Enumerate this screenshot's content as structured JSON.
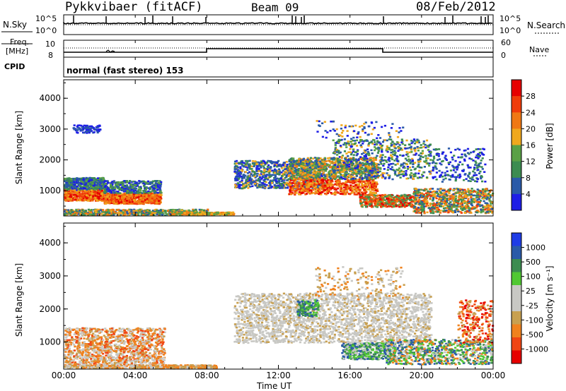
{
  "header": {
    "station": "Pykkvibaer (fitACF)",
    "beam": "Beam 09",
    "date": "08/Feb/2012"
  },
  "strip": {
    "nsky_label": "N.Sky",
    "freq_label_1": "Freq.",
    "freq_label_2": "[MHz]",
    "cpid_label": "CPID",
    "nsearch_label": "N.Search",
    "nave_label": "Nave",
    "nsky_ticks": [
      "10^5",
      "10^0"
    ],
    "nsearch_ticks": [
      "10^5",
      "10^0"
    ],
    "freq_ticks": [
      "10",
      "8"
    ],
    "nave_ticks": [
      "60",
      "0"
    ],
    "cpid_text": "normal (fast stereo) 153"
  },
  "colors": {
    "power_scale": [
      "#1e1ee6",
      "#2a5aa8",
      "#3c8c50",
      "#5aa046",
      "#f0a81e",
      "#f07814",
      "#f03c0a",
      "#e60000"
    ],
    "velocity_scale": [
      "#e60000",
      "#f04614",
      "#f0821e",
      "#c8a050",
      "#c8c8c4",
      "#c8c8c4",
      "#50c832",
      "#3c8c50",
      "#2a5aa8",
      "#1e3ce6"
    ]
  },
  "chart_data": [
    {
      "type": "heatmap",
      "name": "power",
      "ylabel": "Slant Range [km]",
      "ylim": [
        180,
        4600
      ],
      "yticks": [
        "4000",
        "3000",
        "2000",
        "1000"
      ],
      "colorbar_label": "Power [dB]",
      "colorbar_ticks": [
        "28",
        "24",
        "20",
        "16",
        "12",
        "8",
        "4"
      ],
      "xticks": [
        "00:00",
        "04:00",
        "08:00",
        "12:00",
        "16:00",
        "20:00",
        "00:00"
      ],
      "xlim_hours": [
        0,
        24
      ]
    },
    {
      "type": "heatmap",
      "name": "velocity",
      "ylabel": "Slant Range [km]",
      "ylim": [
        180,
        4600
      ],
      "yticks": [
        "4000",
        "3000",
        "2000",
        "1000"
      ],
      "colorbar_label": "Velocity [m s⁻¹]",
      "colorbar_ticks": [
        "1000",
        "500",
        "100",
        "25",
        "-25",
        "-100",
        "-500",
        "-1000"
      ],
      "xticks": [
        "00:00",
        "04:00",
        "08:00",
        "12:00",
        "16:00",
        "20:00",
        "00:00"
      ],
      "xlabel": "Time UT",
      "xlim_hours": [
        0,
        24
      ]
    }
  ]
}
